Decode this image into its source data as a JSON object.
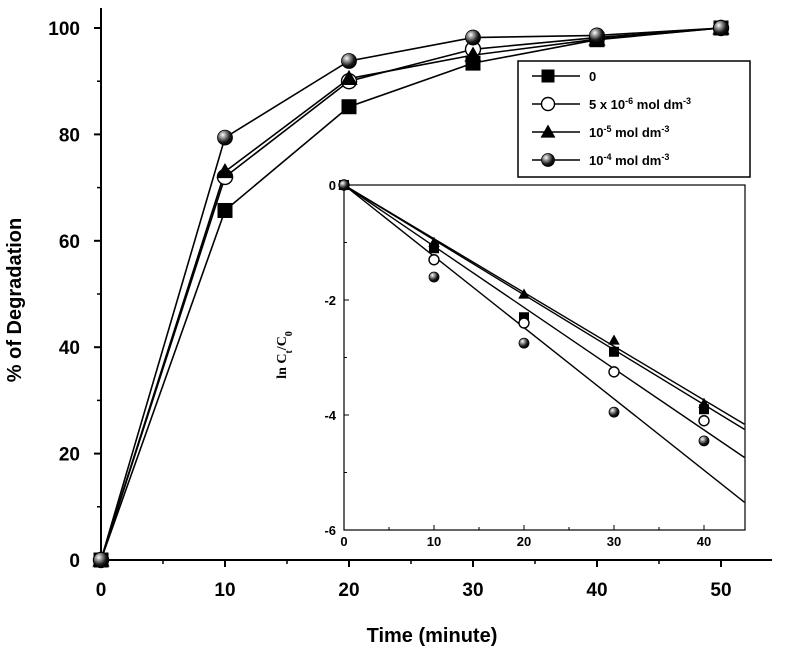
{
  "chart_data": [
    {
      "type": "line",
      "title": "",
      "xlabel": "Time (minute)",
      "ylabel": "% of Degradation",
      "xlim": [
        0,
        52
      ],
      "ylim": [
        0,
        102
      ],
      "xticks": [
        0,
        10,
        20,
        30,
        40,
        50
      ],
      "yticks": [
        0,
        20,
        40,
        60,
        80,
        100
      ],
      "x": [
        0,
        10,
        20,
        30,
        40,
        50
      ],
      "legend_position": "top-right",
      "series": [
        {
          "name": "0",
          "marker": "square",
          "values": [
            0,
            65.7,
            85.2,
            93.4,
            97.8,
            100
          ]
        },
        {
          "name": "5 x 10-6 mol dm-3",
          "marker": "open-circle",
          "values": [
            0,
            72,
            90,
            96,
            98.2,
            100
          ]
        },
        {
          "name": "10-5 mol dm-3",
          "marker": "triangle",
          "values": [
            0,
            73,
            90.5,
            94.9,
            97.9,
            100
          ]
        },
        {
          "name": "10-4 mol dm-3",
          "marker": "shaded-sphere",
          "values": [
            0,
            79.4,
            93.8,
            98.2,
            98.6,
            100
          ]
        }
      ]
    },
    {
      "type": "scatter",
      "title": "",
      "xlabel": "",
      "ylabel": "ln Ct/C0",
      "xlim": [
        0,
        45
      ],
      "ylim": [
        -6,
        0
      ],
      "xticks": [
        0,
        10,
        20,
        30,
        40
      ],
      "yticks": [
        0,
        -2,
        -4,
        -6
      ],
      "x": [
        0,
        10,
        20,
        30,
        40
      ],
      "series": [
        {
          "name": "0",
          "marker": "square",
          "values": [
            0,
            -1.1,
            -2.3,
            -2.9,
            -3.9
          ],
          "fit_slope": -0.0955
        },
        {
          "name": "5 x 10-6 mol dm-3",
          "marker": "open-circle",
          "values": [
            0,
            -1.3,
            -2.4,
            -3.25,
            -4.1
          ],
          "fit_slope": -0.1065
        },
        {
          "name": "10-5 mol dm-3",
          "marker": "triangle",
          "values": [
            0,
            -1.0,
            -1.9,
            -2.7,
            -3.8
          ],
          "fit_slope": -0.0935
        },
        {
          "name": "10-4 mol dm-3",
          "marker": "shaded-sphere",
          "values": [
            0,
            -1.6,
            -2.75,
            -3.95,
            -4.45
          ],
          "fit_slope": -0.124
        }
      ]
    }
  ],
  "legend": {
    "entries": [
      {
        "base": "0",
        "sup": "",
        "unit": ""
      },
      {
        "base": "5 x 10",
        "sup": "-6",
        "unit": " mol dm",
        "sup2": "-3"
      },
      {
        "base": "10",
        "sup": "-5",
        "unit": " mol dm",
        "sup2": "-3"
      },
      {
        "base": "10",
        "sup": "-4",
        "unit": " mol dm",
        "sup2": "-3"
      }
    ]
  },
  "colors": {
    "line": "#000000",
    "background": "#ffffff"
  }
}
